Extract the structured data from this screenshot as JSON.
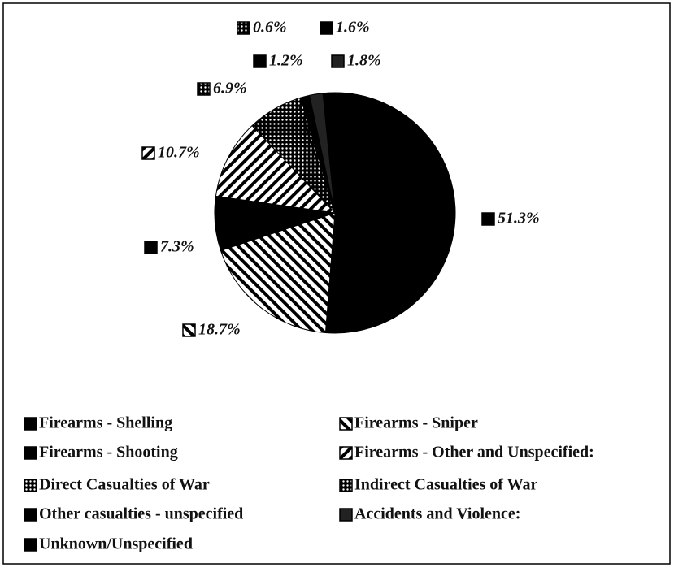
{
  "chart_data": {
    "type": "pie",
    "categories": [
      "Firearms - Shelling",
      "Firearms - Sniper",
      "Firearms - Shooting",
      "Firearms - Other and Unspecified:",
      "Direct Casualties of War",
      "Indirect Casualties of War",
      "Other casualties - unspecified",
      "Accidents and Violence:",
      "Unknown/Unspecified"
    ],
    "values": [
      51.3,
      18.7,
      7.3,
      10.7,
      6.9,
      0.6,
      1.2,
      1.8,
      1.6
    ],
    "value_labels": [
      "51.3%",
      "18.7%",
      "7.3%",
      "10.7%",
      "6.9%",
      "0.6%",
      "1.2%",
      "1.8%",
      "1.6%"
    ],
    "colors": [
      "#000000",
      "#000000",
      "#000000",
      "#000000",
      "#000000",
      "#555555",
      "#000000",
      "#222222",
      "#000000"
    ],
    "patterns": [
      "solid",
      "hatch-back",
      "solid",
      "hatch-forward",
      "dots",
      "dots",
      "solid",
      "solid",
      "solid"
    ],
    "legend": "bottom"
  }
}
